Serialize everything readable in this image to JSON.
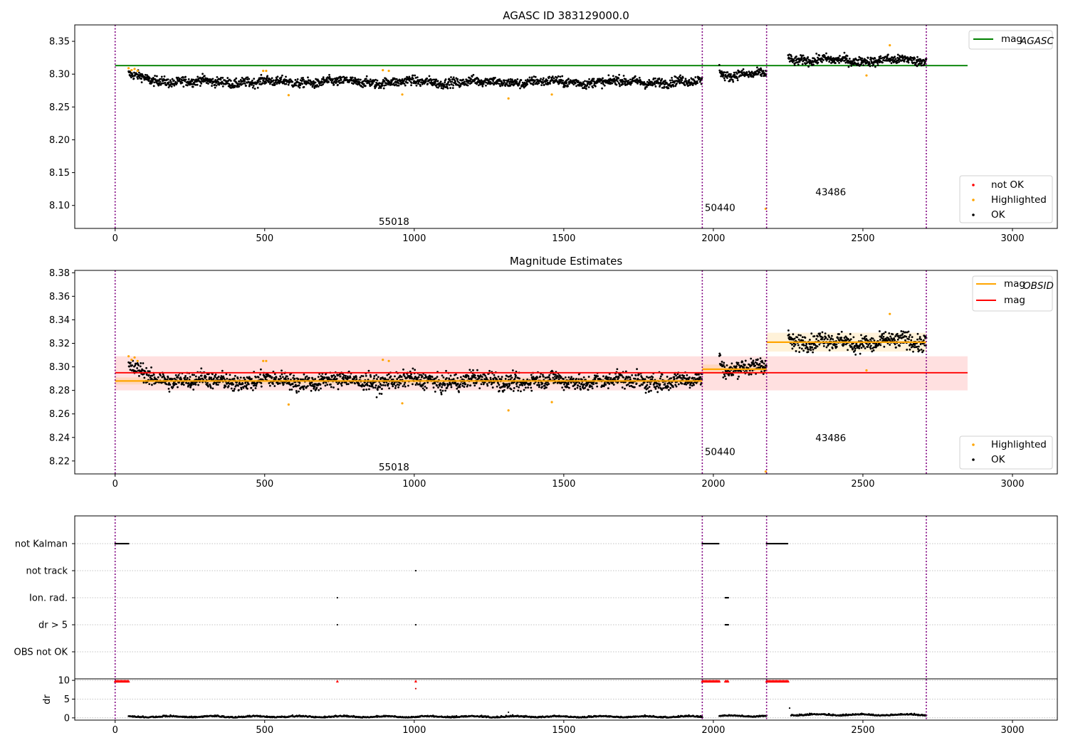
{
  "chart_data": [
    {
      "type": "scatter",
      "title": "AGASC ID 383129000.0",
      "xlim": [
        -135,
        3150
      ],
      "ylim": [
        8.065,
        8.375
      ],
      "x_ticks": [
        0,
        500,
        1000,
        1500,
        2000,
        2500,
        3000
      ],
      "y_ticks": [
        8.1,
        8.15,
        8.2,
        8.25,
        8.3,
        8.35
      ],
      "x_tick_labels": [
        "0",
        "500",
        "1000",
        "1500",
        "2000",
        "2500",
        "3000"
      ],
      "y_tick_labels": [
        "8.10",
        "8.15",
        "8.20",
        "8.25",
        "8.30",
        "8.35"
      ],
      "obs_boundaries": [
        0,
        1963,
        2178,
        2712
      ],
      "obsid_labels": [
        {
          "text": "55018",
          "x": 980,
          "y": 8.076
        },
        {
          "text": "50440",
          "x": 2070,
          "y": 8.097
        },
        {
          "text": "43486",
          "x": 2440,
          "y": 8.121
        }
      ],
      "agasc_line": {
        "y": 8.313,
        "x_range": [
          0,
          2850
        ],
        "color": "#008000"
      },
      "legend_top": [
        {
          "name": "mag",
          "sub": "AGASC",
          "color": "#008000",
          "kind": "line"
        }
      ],
      "legend_bottom": [
        {
          "name": "not OK",
          "color": "#ff0000",
          "kind": "dot"
        },
        {
          "name": "Highlighted",
          "color": "#ffa500",
          "kind": "dot"
        },
        {
          "name": "OK",
          "color": "#000000",
          "kind": "dot"
        }
      ],
      "segments": [
        {
          "x_range": [
            45,
            1963
          ],
          "base": 8.288,
          "spread": 0.007,
          "start_offset": 0.012
        },
        {
          "x_range": [
            2020,
            2178
          ],
          "base": 8.299,
          "spread": 0.007,
          "start_offset": 0.012
        },
        {
          "x_range": [
            2250,
            2712
          ],
          "base": 8.321,
          "spread": 0.007,
          "start_offset": 0.008
        }
      ],
      "highlighted_points": [
        [
          45,
          8.309
        ],
        [
          55,
          8.306
        ],
        [
          65,
          8.308
        ],
        [
          75,
          8.305
        ],
        [
          495,
          8.305
        ],
        [
          505,
          8.305
        ],
        [
          580,
          8.268
        ],
        [
          895,
          8.306
        ],
        [
          915,
          8.305
        ],
        [
          960,
          8.269
        ],
        [
          1315,
          8.263
        ],
        [
          1460,
          8.269
        ],
        [
          2175,
          8.095
        ],
        [
          2512,
          8.298
        ],
        [
          2590,
          8.344
        ]
      ]
    },
    {
      "type": "scatter",
      "title": "Magnitude Estimates",
      "xlim": [
        -135,
        3150
      ],
      "ylim": [
        8.209,
        8.382
      ],
      "x_ticks": [
        0,
        500,
        1000,
        1500,
        2000,
        2500,
        3000
      ],
      "y_ticks": [
        8.22,
        8.24,
        8.26,
        8.28,
        8.3,
        8.32,
        8.34,
        8.36,
        8.38
      ],
      "x_tick_labels": [
        "0",
        "500",
        "1000",
        "1500",
        "2000",
        "2500",
        "3000"
      ],
      "y_tick_labels": [
        "8.22",
        "8.24",
        "8.26",
        "8.28",
        "8.30",
        "8.32",
        "8.34",
        "8.36",
        "8.38"
      ],
      "obs_boundaries": [
        0,
        1963,
        2178,
        2712
      ],
      "obsid_labels": [
        {
          "text": "55018",
          "x": 980,
          "y": 8.215
        },
        {
          "text": "50440",
          "x": 2070,
          "y": 8.228
        },
        {
          "text": "43486",
          "x": 2440,
          "y": 8.24
        }
      ],
      "mag_line": {
        "y": 8.295,
        "band": [
          8.28,
          8.309
        ],
        "x_range": [
          0,
          2850
        ],
        "color": "#ff0000"
      },
      "obsid_mags": [
        {
          "x_range": [
            0,
            1963
          ],
          "y": 8.288,
          "band": [
            8.285,
            8.291
          ]
        },
        {
          "x_range": [
            1963,
            2178
          ],
          "y": 8.298,
          "band": [
            8.294,
            8.302
          ]
        },
        {
          "x_range": [
            2178,
            2712
          ],
          "y": 8.321,
          "band": [
            8.313,
            8.329
          ]
        }
      ],
      "legend_top": [
        {
          "name": "mag",
          "sub": "OBSID",
          "color": "#ffa500",
          "kind": "line"
        },
        {
          "name": "mag",
          "sub": "",
          "color": "#ff0000",
          "kind": "line"
        }
      ],
      "legend_bottom": [
        {
          "name": "Highlighted",
          "color": "#ffa500",
          "kind": "dot"
        },
        {
          "name": "OK",
          "color": "#000000",
          "kind": "dot"
        }
      ],
      "highlighted_points": [
        [
          45,
          8.309
        ],
        [
          55,
          8.306
        ],
        [
          65,
          8.308
        ],
        [
          75,
          8.305
        ],
        [
          495,
          8.305
        ],
        [
          505,
          8.305
        ],
        [
          580,
          8.268
        ],
        [
          895,
          8.306
        ],
        [
          915,
          8.305
        ],
        [
          960,
          8.269
        ],
        [
          1315,
          8.263
        ],
        [
          1460,
          8.27
        ],
        [
          2175,
          8.211
        ],
        [
          2512,
          8.297
        ],
        [
          2590,
          8.345
        ]
      ]
    },
    {
      "type": "scatter",
      "title": "",
      "xlim": [
        -135,
        3150
      ],
      "flag_rows": [
        "not Kalman",
        "not track",
        "Ion. rad.",
        "dr > 5",
        "OBS not OK"
      ],
      "flag_points": {
        "not Kalman": [
          [
            0,
            45
          ],
          [
            1963,
            2020
          ],
          [
            2178,
            2250
          ]
        ],
        "not track": [
          [
            1005,
            1005
          ]
        ],
        "Ion. rad.": [
          [
            743,
            743
          ],
          [
            2040,
            2050
          ]
        ],
        "dr > 5": [
          [
            743,
            743
          ],
          [
            1005,
            1005
          ],
          [
            2040,
            2050
          ]
        ],
        "OBS not OK": []
      },
      "dr_ylabel": "dr",
      "dr_ylim": [
        -0.6,
        10.4
      ],
      "dr_y_ticks": [
        0,
        5,
        10
      ],
      "dr_y_tick_labels": [
        "0",
        "5",
        "10"
      ],
      "x_ticks": [
        0,
        500,
        1000,
        1500,
        2000,
        2500,
        3000
      ],
      "x_tick_labels": [
        "0",
        "500",
        "1000",
        "1500",
        "2000",
        "2500",
        "3000"
      ],
      "obs_boundaries": [
        0,
        1963,
        2178,
        2712
      ],
      "dr_clipped": [
        [
          0,
          45
        ],
        [
          743,
          743
        ],
        [
          1005,
          1005
        ],
        [
          1963,
          2020
        ],
        [
          2040,
          2050
        ],
        [
          2178,
          2250
        ]
      ],
      "dr_outliers": [
        [
          1005,
          7.8
        ],
        [
          1315,
          1.5
        ],
        [
          2255,
          2.6
        ]
      ],
      "dr_segments": [
        {
          "x_range": [
            45,
            1963
          ],
          "base": 0.2
        },
        {
          "x_range": [
            2020,
            2178
          ],
          "base": 0.4
        },
        {
          "x_range": [
            2260,
            2712
          ],
          "base": 0.7
        }
      ]
    }
  ]
}
